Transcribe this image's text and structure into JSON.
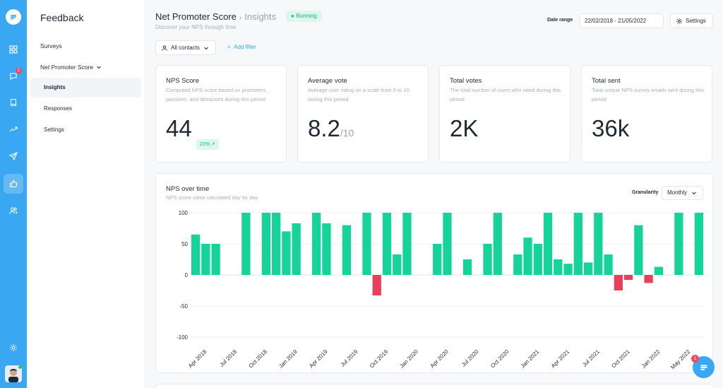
{
  "rail": {
    "badge_count": "1",
    "icons": [
      "dashboard-icon",
      "chat-icon",
      "book-icon",
      "trending-icon",
      "send-icon",
      "thumbs-up-icon",
      "users-icon"
    ],
    "settings_icon": "gear-icon"
  },
  "sidebar": {
    "title": "Feedback",
    "surveys": "Surveys",
    "nps_section": "Net Promoter Score",
    "items": [
      {
        "label": "Insights",
        "active": true
      },
      {
        "label": "Responses",
        "active": false
      },
      {
        "label": "Settings",
        "active": false
      }
    ]
  },
  "header": {
    "title": "Net Promoter Score",
    "breadcrumb": "Insights",
    "status": "Running",
    "subtitle": "Discover your NPS through time",
    "date_label": "Date range",
    "date_value": "22/02/2018 - 21/05/2022",
    "settings_label": "Settings"
  },
  "filters": {
    "contacts": "All contacts",
    "add_filter": "Add filter"
  },
  "cards": [
    {
      "title": "NPS Score",
      "desc": "Computed NPS score based on promoters, passives, and detractors during this period",
      "value": "44",
      "unit": "",
      "delta": "22%"
    },
    {
      "title": "Average vote",
      "desc": "Average user rating on a scale from 0 to 10 during this period",
      "value": "8.2",
      "unit": "/10"
    },
    {
      "title": "Total votes",
      "desc": "The total number of users who rated during this period",
      "value": "2K",
      "unit": ""
    },
    {
      "title": "Total sent",
      "desc": "Total unique NPS survey emails sent during this period",
      "value": "36k",
      "unit": ""
    }
  ],
  "chart_section": {
    "title": "NPS over time",
    "subtitle": "NPS score value calculated day by day",
    "granularity_label": "Granularity",
    "granularity_value": "Monthly"
  },
  "chat_badge": "1",
  "colors": {
    "accent": "#3aa7f2",
    "positive": "#16d39a",
    "negative": "#e8405a"
  },
  "chart_data": {
    "type": "bar",
    "ylim": [
      -100,
      100
    ],
    "yticks": [
      100,
      50,
      0,
      -50,
      -100
    ],
    "xtick_labels": [
      "Apr 2018",
      "Jul 2018",
      "Oct 2018",
      "Jan 2019",
      "Apr 2019",
      "Jul 2019",
      "Oct 2019",
      "Jan 2020",
      "Apr 2020",
      "Jul 2020",
      "Oct 2020",
      "Jan 2021",
      "Apr 2021",
      "Jul 2021",
      "Oct 2021",
      "Jan 2022",
      "May 2022"
    ],
    "series": [
      {
        "values": [
          65,
          50,
          50,
          null,
          null,
          100,
          null,
          100,
          100,
          70,
          83,
          null,
          100,
          83,
          null,
          80,
          null,
          100,
          -33,
          100,
          33,
          100,
          null,
          null,
          50,
          100,
          null,
          25,
          null,
          50,
          100,
          null,
          33,
          60,
          50,
          100,
          25,
          18,
          100,
          20,
          100,
          33,
          -25,
          -8,
          80,
          -13,
          13,
          null,
          100,
          null,
          100
        ]
      }
    ]
  }
}
